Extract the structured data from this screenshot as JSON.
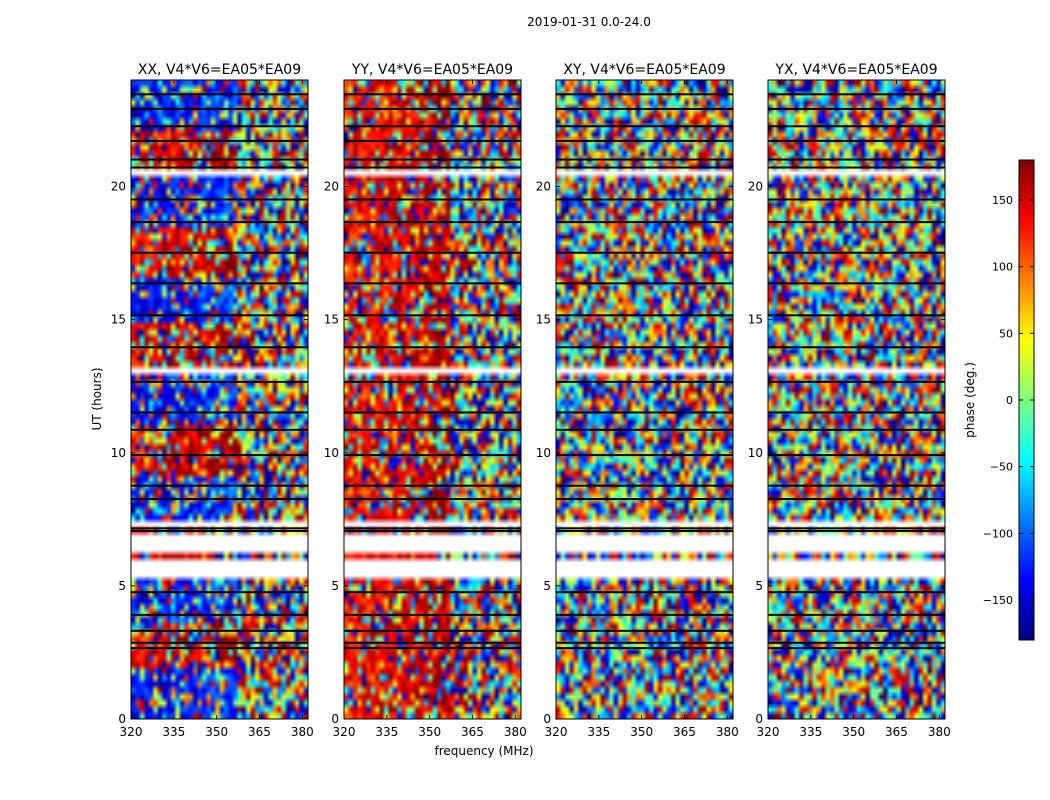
{
  "chart_data": {
    "type": "heatmap",
    "suptitle": "2019-01-31 0.0-24.0",
    "xlabel": "frequency (MHz)",
    "ylabel": "UT (hours)",
    "xlim": [
      320,
      382
    ],
    "ylim": [
      0,
      24
    ],
    "x_ticks": [
      320,
      335,
      350,
      365,
      380
    ],
    "y_ticks": [
      0,
      5,
      10,
      15,
      20
    ],
    "panels": [
      {
        "title": "XX, V4*V6=EA05*EA09",
        "polarization": "XX",
        "coherent": true
      },
      {
        "title": "YY, V4*V6=EA05*EA09",
        "polarization": "YY",
        "coherent": true
      },
      {
        "title": "XY, V4*V6=EA05*EA09",
        "polarization": "XY",
        "coherent": false
      },
      {
        "title": "YX, V4*V6=EA05*EA09",
        "polarization": "YX",
        "coherent": false
      }
    ],
    "colorbar": {
      "label": "phase (deg.)",
      "range": [
        -180,
        180
      ],
      "ticks": [
        150,
        100,
        50,
        0,
        -50,
        -100,
        -150
      ],
      "colormap": "jet",
      "colors": [
        "#00007f",
        "#0000ff",
        "#007fff",
        "#00ffff",
        "#7fff7f",
        "#ffff00",
        "#ff7f00",
        "#ff0000",
        "#7f0000"
      ]
    }
  }
}
